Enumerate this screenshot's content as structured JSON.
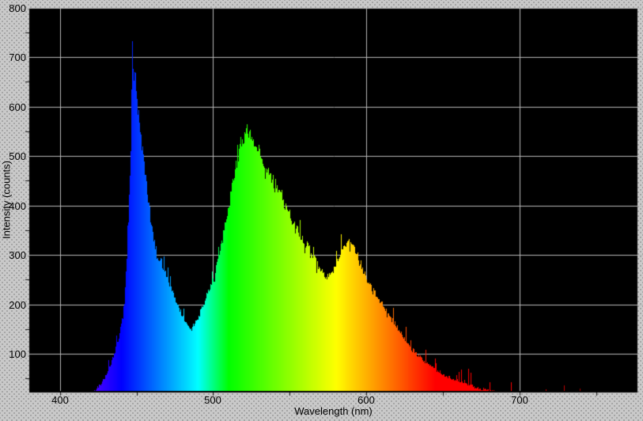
{
  "chart_data": {
    "type": "area",
    "title": "",
    "xlabel": "Wavelength (nm)",
    "ylabel": "Intensity (counts)",
    "x_axis": {
      "min": 380,
      "max": 777,
      "major_ticks": [
        400,
        500,
        600,
        700
      ],
      "minor_ticks": [
        450,
        550,
        650,
        750
      ],
      "grid": true
    },
    "y_axis": {
      "min": 25,
      "max": 800,
      "major_ticks": [
        100,
        200,
        300,
        400,
        500,
        600,
        700,
        800
      ],
      "minor_ticks": [
        50,
        150,
        250,
        350,
        450,
        550,
        650,
        750
      ],
      "grid": true
    },
    "legend": "none",
    "fill": "wavelength-rainbow",
    "plot_style": "1px vertical columns with random noise jitter",
    "peaks": [
      {
        "wavelength_nm": 447,
        "intensity": 727,
        "color": "blue"
      },
      {
        "wavelength_nm": 522,
        "intensity": 550,
        "color": "green"
      },
      {
        "wavelength_nm": 588,
        "intensity": 332,
        "color": "orange-yellow"
      }
    ],
    "troughs": [
      {
        "wavelength_nm": 484,
        "intensity": 155
      },
      {
        "wavelength_nm": 574,
        "intensity": 256
      }
    ],
    "points": [
      [
        380,
        0
      ],
      [
        405,
        0
      ],
      [
        408,
        2
      ],
      [
        411,
        5
      ],
      [
        414,
        8
      ],
      [
        417,
        12
      ],
      [
        420,
        17
      ],
      [
        423,
        26
      ],
      [
        426,
        37
      ],
      [
        429,
        52
      ],
      [
        432,
        72
      ],
      [
        435,
        98
      ],
      [
        438,
        130
      ],
      [
        440,
        160
      ],
      [
        442,
        205
      ],
      [
        443,
        266
      ],
      [
        444,
        330
      ],
      [
        445,
        400
      ],
      [
        446,
        520
      ],
      [
        447,
        727
      ],
      [
        448,
        650
      ],
      [
        449,
        688
      ],
      [
        450,
        620
      ],
      [
        451,
        588
      ],
      [
        452,
        558
      ],
      [
        453,
        528
      ],
      [
        454,
        510
      ],
      [
        455,
        480
      ],
      [
        456,
        450
      ],
      [
        458,
        400
      ],
      [
        460,
        350
      ],
      [
        462,
        317
      ],
      [
        464,
        295
      ],
      [
        466,
        286
      ],
      [
        468,
        268
      ],
      [
        470,
        250
      ],
      [
        472,
        238
      ],
      [
        474,
        220
      ],
      [
        476,
        205
      ],
      [
        478,
        190
      ],
      [
        480,
        172
      ],
      [
        482,
        160
      ],
      [
        484,
        154
      ],
      [
        486,
        156
      ],
      [
        488,
        163
      ],
      [
        490,
        175
      ],
      [
        492,
        190
      ],
      [
        494,
        205
      ],
      [
        496,
        220
      ],
      [
        498,
        237
      ],
      [
        500,
        253
      ],
      [
        502,
        277
      ],
      [
        504,
        300
      ],
      [
        506,
        334
      ],
      [
        508,
        366
      ],
      [
        510,
        400
      ],
      [
        512,
        437
      ],
      [
        514,
        470
      ],
      [
        516,
        497
      ],
      [
        518,
        520
      ],
      [
        520,
        537
      ],
      [
        522,
        550
      ],
      [
        524,
        546
      ],
      [
        526,
        535
      ],
      [
        528,
        520
      ],
      [
        530,
        510
      ],
      [
        531,
        502
      ],
      [
        533,
        485
      ],
      [
        536,
        465
      ],
      [
        539,
        448
      ],
      [
        542,
        430
      ],
      [
        545,
        412
      ],
      [
        547,
        398
      ],
      [
        550,
        382
      ],
      [
        552,
        366
      ],
      [
        555,
        352
      ],
      [
        557,
        339
      ],
      [
        560,
        325
      ],
      [
        562,
        315
      ],
      [
        565,
        300
      ],
      [
        567,
        286
      ],
      [
        569,
        272
      ],
      [
        571,
        265
      ],
      [
        573,
        258
      ],
      [
        575,
        256
      ],
      [
        577,
        262
      ],
      [
        579,
        272
      ],
      [
        581,
        288
      ],
      [
        583,
        305
      ],
      [
        585,
        318
      ],
      [
        587,
        328
      ],
      [
        588,
        332
      ],
      [
        589,
        330
      ],
      [
        590,
        325
      ],
      [
        592,
        314
      ],
      [
        594,
        300
      ],
      [
        596,
        285
      ],
      [
        598,
        268
      ],
      [
        600,
        253
      ],
      [
        602,
        240
      ],
      [
        604,
        230
      ],
      [
        606,
        220
      ],
      [
        608,
        210
      ],
      [
        610,
        200
      ],
      [
        615,
        178
      ],
      [
        619,
        160
      ],
      [
        624,
        135
      ],
      [
        629,
        112
      ],
      [
        634,
        95
      ],
      [
        640,
        78
      ],
      [
        645,
        68
      ],
      [
        650,
        58
      ],
      [
        655,
        51
      ],
      [
        660,
        45
      ],
      [
        666,
        38
      ],
      [
        672,
        32
      ],
      [
        678,
        27
      ],
      [
        684,
        23
      ],
      [
        690,
        19
      ],
      [
        696,
        16
      ],
      [
        702,
        13
      ],
      [
        708,
        10
      ],
      [
        715,
        7
      ],
      [
        722,
        5
      ],
      [
        730,
        3
      ],
      [
        740,
        2
      ],
      [
        748,
        1
      ],
      [
        775,
        0
      ]
    ],
    "colors": {
      "background": "#c9c9c9",
      "dither_dot": "#a2a2a2",
      "plot_background": "#000000",
      "gridline": "#b9b9b9",
      "axis_line": "#000000",
      "tick": "#1a1a1a",
      "text": "#000000"
    }
  }
}
